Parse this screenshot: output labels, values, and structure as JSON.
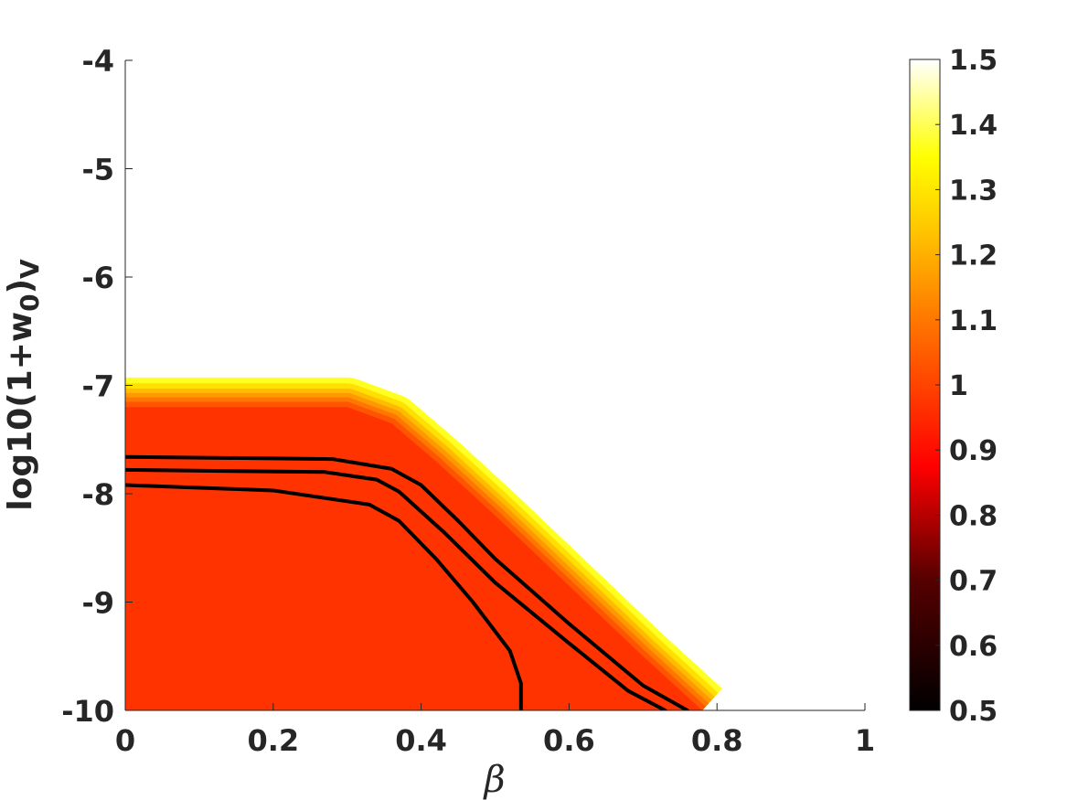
{
  "chart_data": {
    "type": "heatmap",
    "xlabel": "β",
    "ylabel": {
      "base": "log10(1+w",
      "sub0": "0",
      "close": ")",
      "subV": "V"
    },
    "xlim": [
      0,
      1
    ],
    "ylim": [
      -10,
      -4
    ],
    "x_ticks": [
      "0",
      "0.2",
      "0.4",
      "0.6",
      "0.8",
      "1"
    ],
    "x_tick_values": [
      0,
      0.2,
      0.4,
      0.6,
      0.8,
      1
    ],
    "y_ticks": [
      "-4",
      "-5",
      "-6",
      "-7",
      "-8",
      "-9",
      "-10"
    ],
    "y_tick_values": [
      -4,
      -5,
      -6,
      -7,
      -8,
      -9,
      -10
    ],
    "colorbar": {
      "range": [
        0.5,
        1.5
      ],
      "colormap": "hot",
      "ticks": [
        "0.5",
        "0.6",
        "0.7",
        "0.8",
        "0.9",
        "1",
        "1.1",
        "1.2",
        "1.3",
        "1.4",
        "1.5"
      ],
      "tick_values": [
        0.5,
        0.6,
        0.7,
        0.8,
        0.9,
        1.0,
        1.1,
        1.2,
        1.3,
        1.4,
        1.5
      ]
    },
    "region": {
      "fill_value": 0.96,
      "fill_color": "#ff3300",
      "boundary": [
        [
          0,
          -7.2
        ],
        [
          0.3,
          -7.2
        ],
        [
          0.36,
          -7.35
        ],
        [
          0.42,
          -7.7
        ],
        [
          0.5,
          -8.2
        ],
        [
          0.6,
          -8.85
        ],
        [
          0.7,
          -9.5
        ],
        [
          0.78,
          -10
        ]
      ],
      "gradient_width_beta": 0.08,
      "edge_color": "#ffff22"
    },
    "contours": [
      {
        "color": "#000000",
        "points": [
          [
            0,
            -7.66
          ],
          [
            0.28,
            -7.68
          ],
          [
            0.36,
            -7.77
          ],
          [
            0.4,
            -7.92
          ],
          [
            0.45,
            -8.25
          ],
          [
            0.5,
            -8.6
          ],
          [
            0.6,
            -9.2
          ],
          [
            0.7,
            -9.77
          ],
          [
            0.76,
            -10
          ]
        ]
      },
      {
        "color": "#000000",
        "points": [
          [
            0,
            -7.78
          ],
          [
            0.27,
            -7.8
          ],
          [
            0.34,
            -7.87
          ],
          [
            0.37,
            -7.98
          ],
          [
            0.43,
            -8.35
          ],
          [
            0.5,
            -8.82
          ],
          [
            0.6,
            -9.38
          ],
          [
            0.68,
            -9.82
          ],
          [
            0.73,
            -10
          ]
        ]
      },
      {
        "color": "#000000",
        "points": [
          [
            0,
            -7.92
          ],
          [
            0.2,
            -7.97
          ],
          [
            0.33,
            -8.1
          ],
          [
            0.37,
            -8.25
          ],
          [
            0.42,
            -8.6
          ],
          [
            0.47,
            -9.0
          ],
          [
            0.52,
            -9.45
          ],
          [
            0.535,
            -9.75
          ],
          [
            0.535,
            -10
          ]
        ]
      }
    ]
  }
}
